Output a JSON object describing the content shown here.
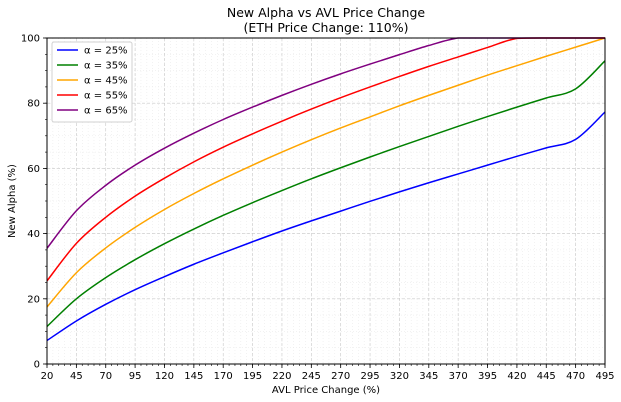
{
  "chart_data": {
    "type": "line",
    "title": "New Alpha vs AVL Price Change",
    "subtitle": "(ETH Price Change: 110%)",
    "xlabel": "AVL Price Change (%)",
    "ylabel": "New Alpha (%)",
    "xlim": [
      20,
      495
    ],
    "ylim": [
      0,
      100
    ],
    "xticks": [
      20,
      45,
      70,
      95,
      120,
      145,
      170,
      195,
      220,
      245,
      270,
      295,
      320,
      345,
      370,
      395,
      420,
      445,
      470,
      495
    ],
    "yticks": [
      0,
      20,
      40,
      60,
      80,
      100
    ],
    "grid": true,
    "legend_position": "top-left",
    "x": [
      20,
      45,
      70,
      95,
      120,
      145,
      170,
      195,
      220,
      245,
      270,
      295,
      320,
      345,
      370,
      395,
      420,
      445,
      470,
      495
    ],
    "series": [
      {
        "name": "α = 25%",
        "color": "#0000ff",
        "values": [
          7.2,
          13.2,
          18.3,
          22.8,
          26.8,
          30.6,
          34.1,
          37.5,
          40.8,
          43.9,
          46.9,
          49.9,
          52.8,
          55.6,
          58.3,
          61.0,
          63.7,
          66.3,
          68.9,
          77.3
        ]
      },
      {
        "name": "α = 35%",
        "color": "#008000",
        "values": [
          11.5,
          20.0,
          26.5,
          32.0,
          36.9,
          41.4,
          45.6,
          49.5,
          53.2,
          56.8,
          60.2,
          63.5,
          66.7,
          69.8,
          72.9,
          75.9,
          78.8,
          81.6,
          84.4,
          93.0
        ]
      },
      {
        "name": "α = 45%",
        "color": "#ffa500",
        "values": [
          17.5,
          28.0,
          35.6,
          41.9,
          47.4,
          52.3,
          56.8,
          61.0,
          65.0,
          68.8,
          72.4,
          75.8,
          79.2,
          82.4,
          85.5,
          88.6,
          91.5,
          94.4,
          97.2,
          100.0
        ]
      },
      {
        "name": "α = 55%",
        "color": "#ff0000",
        "values": [
          25.5,
          37.0,
          45.0,
          51.5,
          57.0,
          62.0,
          66.5,
          70.6,
          74.5,
          78.2,
          81.7,
          85.0,
          88.2,
          91.3,
          94.2,
          97.1,
          99.9,
          100.0,
          100.0,
          100.0
        ]
      },
      {
        "name": "α = 65%",
        "color": "#800080",
        "values": [
          35.5,
          47.0,
          54.8,
          61.0,
          66.2,
          70.8,
          75.0,
          78.8,
          82.4,
          85.8,
          89.0,
          92.0,
          94.9,
          97.7,
          100.0,
          100.0,
          100.0,
          100.0,
          100.0,
          100.0
        ]
      }
    ]
  }
}
